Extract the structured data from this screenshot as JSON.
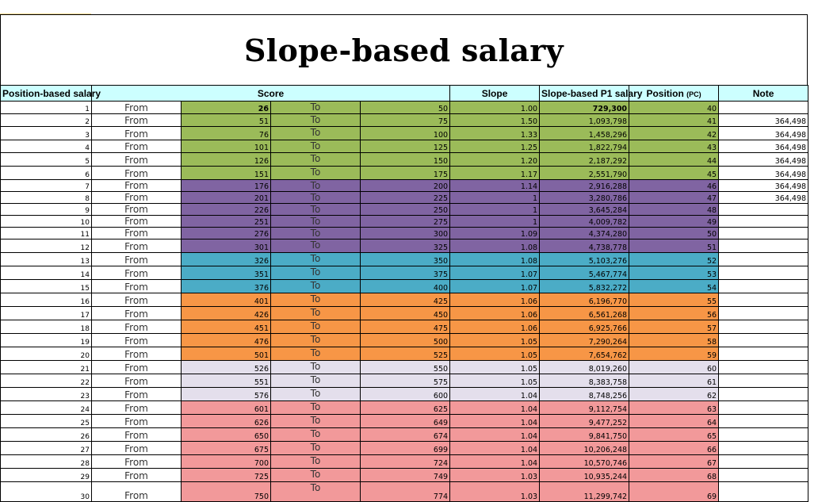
{
  "title": "Slope-based salary",
  "headers": {
    "position_based_salary": "Position-based salary",
    "score": "Score",
    "slope": "Slope",
    "slope_p1": "Slope-based P1 salary",
    "position": "Position",
    "position_unit": "(PC)",
    "note": "Note"
  },
  "from_label": "From",
  "to_label": "To",
  "colors": {
    "header": "#ccffff",
    "green": "#9bbb59",
    "purple": "#8064a2",
    "teal": "#4bacc6",
    "orange": "#f79646",
    "lavender": "#e4dfec",
    "salmon": "#f2999a"
  },
  "rows": [
    {
      "n": "1",
      "from": "26",
      "to": "50",
      "slope": "1.00",
      "salary": "729,300",
      "pos": "40",
      "note": ""
    },
    {
      "n": "2",
      "from": "51",
      "to": "75",
      "slope": "1.50",
      "salary": "1,093,798",
      "pos": "41",
      "note": "364,498"
    },
    {
      "n": "3",
      "from": "76",
      "to": "100",
      "slope": "1.33",
      "salary": "1,458,296",
      "pos": "42",
      "note": "364,498"
    },
    {
      "n": "4",
      "from": "101",
      "to": "125",
      "slope": "1.25",
      "salary": "1,822,794",
      "pos": "43",
      "note": "364,498"
    },
    {
      "n": "5",
      "from": "126",
      "to": "150",
      "slope": "1.20",
      "salary": "2,187,292",
      "pos": "44",
      "note": "364,498"
    },
    {
      "n": "6",
      "from": "151",
      "to": "175",
      "slope": "1.17",
      "salary": "2,551,790",
      "pos": "45",
      "note": "364,498"
    },
    {
      "n": "7",
      "from": "176",
      "to": "200",
      "slope": "1.14",
      "salary": "2,916,288",
      "pos": "46",
      "note": "364,498"
    },
    {
      "n": "8",
      "from": "201",
      "to": "225",
      "slope": "1",
      "salary": "3,280,786",
      "pos": "47",
      "note": "364,498"
    },
    {
      "n": "9",
      "from": "226",
      "to": "250",
      "slope": "1",
      "salary": "3,645,284",
      "pos": "48",
      "note": ""
    },
    {
      "n": "10",
      "from": "251",
      "to": "275",
      "slope": "1",
      "salary": "4,009,782",
      "pos": "49",
      "note": ""
    },
    {
      "n": "11",
      "from": "276",
      "to": "300",
      "slope": "1.09",
      "salary": "4,374,280",
      "pos": "50",
      "note": ""
    },
    {
      "n": "12",
      "from": "301",
      "to": "325",
      "slope": "1.08",
      "salary": "4,738,778",
      "pos": "51",
      "note": ""
    },
    {
      "n": "13",
      "from": "326",
      "to": "350",
      "slope": "1.08",
      "salary": "5,103,276",
      "pos": "52",
      "note": ""
    },
    {
      "n": "14",
      "from": "351",
      "to": "375",
      "slope": "1.07",
      "salary": "5,467,774",
      "pos": "53",
      "note": ""
    },
    {
      "n": "15",
      "from": "376",
      "to": "400",
      "slope": "1.07",
      "salary": "5,832,272",
      "pos": "54",
      "note": ""
    },
    {
      "n": "16",
      "from": "401",
      "to": "425",
      "slope": "1.06",
      "salary": "6,196,770",
      "pos": "55",
      "note": ""
    },
    {
      "n": "17",
      "from": "426",
      "to": "450",
      "slope": "1.06",
      "salary": "6,561,268",
      "pos": "56",
      "note": ""
    },
    {
      "n": "18",
      "from": "451",
      "to": "475",
      "slope": "1.06",
      "salary": "6,925,766",
      "pos": "57",
      "note": ""
    },
    {
      "n": "19",
      "from": "476",
      "to": "500",
      "slope": "1.05",
      "salary": "7,290,264",
      "pos": "58",
      "note": ""
    },
    {
      "n": "20",
      "from": "501",
      "to": "525",
      "slope": "1.05",
      "salary": "7,654,762",
      "pos": "59",
      "note": ""
    },
    {
      "n": "21",
      "from": "526",
      "to": "550",
      "slope": "1.05",
      "salary": "8,019,260",
      "pos": "60",
      "note": ""
    },
    {
      "n": "22",
      "from": "551",
      "to": "575",
      "slope": "1.05",
      "salary": "8,383,758",
      "pos": "61",
      "note": ""
    },
    {
      "n": "23",
      "from": "576",
      "to": "600",
      "slope": "1.04",
      "salary": "8,748,256",
      "pos": "62",
      "note": ""
    },
    {
      "n": "24",
      "from": "601",
      "to": "625",
      "slope": "1.04",
      "salary": "9,112,754",
      "pos": "63",
      "note": ""
    },
    {
      "n": "25",
      "from": "626",
      "to": "649",
      "slope": "1.04",
      "salary": "9,477,252",
      "pos": "64",
      "note": ""
    },
    {
      "n": "26",
      "from": "650",
      "to": "674",
      "slope": "1.04",
      "salary": "9,841,750",
      "pos": "65",
      "note": ""
    },
    {
      "n": "27",
      "from": "675",
      "to": "699",
      "slope": "1.04",
      "salary": "10,206,248",
      "pos": "66",
      "note": ""
    },
    {
      "n": "28",
      "from": "700",
      "to": "724",
      "slope": "1.04",
      "salary": "10,570,746",
      "pos": "67",
      "note": ""
    },
    {
      "n": "29",
      "from": "725",
      "to": "749",
      "slope": "1.03",
      "salary": "10,935,244",
      "pos": "68",
      "note": ""
    },
    {
      "n": "30",
      "from": "750",
      "to": "774",
      "slope": "1.03",
      "salary": "11,299,742",
      "pos": "69",
      "note": ""
    }
  ]
}
